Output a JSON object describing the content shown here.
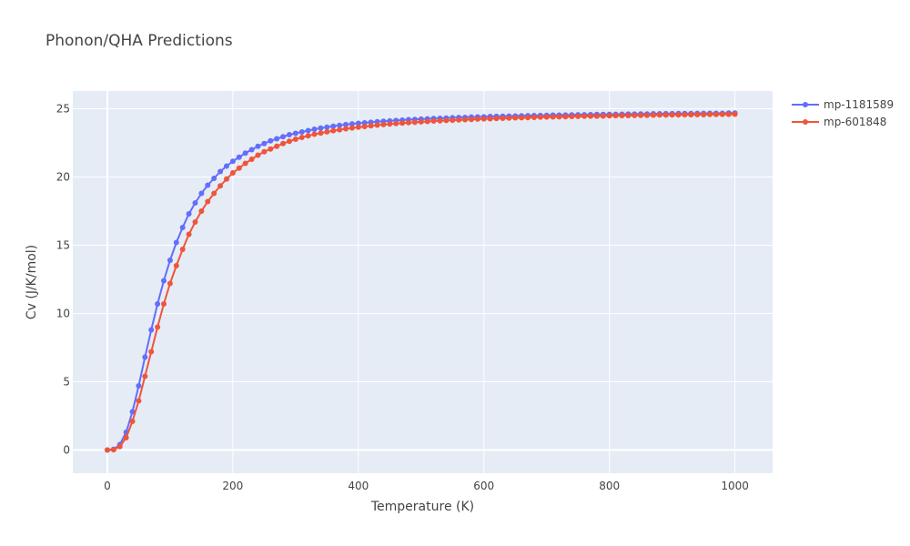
{
  "chart_data": {
    "type": "line",
    "title": "Phonon/QHA Predictions",
    "xlabel": "Temperature (K)",
    "ylabel": "Cv (J/K/mol)",
    "xlim": [
      -55,
      1060
    ],
    "ylim": [
      -1.7,
      26.3
    ],
    "xticks": [
      0,
      200,
      400,
      600,
      800,
      1000
    ],
    "xtick_labels": [
      "0",
      "200",
      "400",
      "600",
      "800",
      "1000"
    ],
    "yticks": [
      0,
      5,
      10,
      15,
      20,
      25
    ],
    "ytick_labels": [
      "0",
      "5",
      "10",
      "15",
      "20",
      "25"
    ],
    "grid": true,
    "legend": "top-right",
    "x": [
      0,
      10,
      20,
      30,
      40,
      50,
      60,
      70,
      80,
      90,
      100,
      110,
      120,
      130,
      140,
      150,
      160,
      170,
      180,
      190,
      200,
      210,
      220,
      230,
      240,
      250,
      260,
      270,
      280,
      290,
      300,
      310,
      320,
      330,
      340,
      350,
      360,
      370,
      380,
      390,
      400,
      410,
      420,
      430,
      440,
      450,
      460,
      470,
      480,
      490,
      500,
      510,
      520,
      530,
      540,
      550,
      560,
      570,
      580,
      590,
      600,
      610,
      620,
      630,
      640,
      650,
      660,
      670,
      680,
      690,
      700,
      710,
      720,
      730,
      740,
      750,
      760,
      770,
      780,
      790,
      800,
      810,
      820,
      830,
      840,
      850,
      860,
      870,
      880,
      890,
      900,
      910,
      920,
      930,
      940,
      950,
      960,
      970,
      980,
      990,
      1000
    ],
    "series": [
      {
        "name": "mp-1181589",
        "color": "#636efa",
        "values": [
          0,
          0.05,
          0.4,
          1.3,
          2.8,
          4.7,
          6.8,
          8.8,
          10.7,
          12.4,
          13.9,
          15.2,
          16.3,
          17.3,
          18.1,
          18.8,
          19.4,
          19.9,
          20.4,
          20.8,
          21.15,
          21.45,
          21.75,
          22.0,
          22.25,
          22.45,
          22.65,
          22.8,
          22.95,
          23.1,
          23.2,
          23.3,
          23.4,
          23.5,
          23.58,
          23.65,
          23.72,
          23.78,
          23.84,
          23.89,
          23.93,
          23.97,
          24.01,
          24.05,
          24.08,
          24.11,
          24.14,
          24.17,
          24.2,
          24.22,
          24.24,
          24.26,
          24.28,
          24.3,
          24.32,
          24.34,
          24.36,
          24.37,
          24.39,
          24.4,
          24.41,
          24.43,
          24.44,
          24.45,
          24.46,
          24.47,
          24.48,
          24.49,
          24.5,
          24.51,
          24.52,
          24.53,
          24.53,
          24.54,
          24.55,
          24.56,
          24.56,
          24.57,
          24.58,
          24.58,
          24.59,
          24.59,
          24.6,
          24.61,
          24.61,
          24.62,
          24.62,
          24.63,
          24.63,
          24.64,
          24.64,
          24.65,
          24.65,
          24.65,
          24.66,
          24.66,
          24.67,
          24.67,
          24.67,
          24.68,
          24.68
        ]
      },
      {
        "name": "mp-601848",
        "color": "#ef553b",
        "values": [
          0,
          0.02,
          0.25,
          0.9,
          2.1,
          3.6,
          5.4,
          7.2,
          9.0,
          10.7,
          12.2,
          13.5,
          14.7,
          15.8,
          16.7,
          17.5,
          18.2,
          18.8,
          19.35,
          19.85,
          20.3,
          20.65,
          21.0,
          21.3,
          21.6,
          21.85,
          22.05,
          22.25,
          22.45,
          22.62,
          22.77,
          22.9,
          23.02,
          23.13,
          23.22,
          23.31,
          23.39,
          23.46,
          23.53,
          23.59,
          23.65,
          23.7,
          23.75,
          23.8,
          23.84,
          23.88,
          23.92,
          23.95,
          23.98,
          24.01,
          24.04,
          24.07,
          24.1,
          24.12,
          24.14,
          24.16,
          24.18,
          24.2,
          24.22,
          24.24,
          24.26,
          24.27,
          24.29,
          24.3,
          24.32,
          24.33,
          24.34,
          24.35,
          24.37,
          24.38,
          24.39,
          24.4,
          24.41,
          24.42,
          24.43,
          24.44,
          24.45,
          24.46,
          24.46,
          24.47,
          24.48,
          24.49,
          24.5,
          24.5,
          24.51,
          24.52,
          24.52,
          24.53,
          24.54,
          24.54,
          24.55,
          24.55,
          24.56,
          24.56,
          24.57,
          24.57,
          24.58,
          24.58,
          24.59,
          24.59,
          24.6
        ]
      }
    ]
  }
}
